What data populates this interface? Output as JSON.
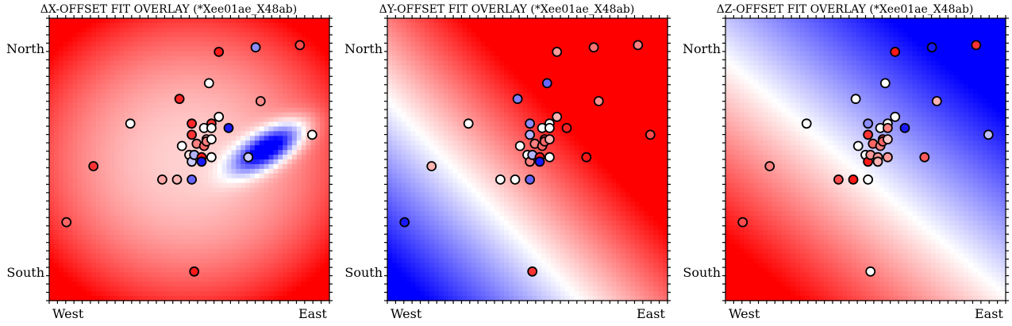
{
  "chart_data": [
    {
      "type": "scatter",
      "title": "ΔX-OFFSET FIT OVERLAY (*Xee01ae_X48ab)",
      "x_tick_labels": [
        "West",
        "East"
      ],
      "y_tick_labels": [
        "North",
        "South"
      ],
      "xlim": [
        -0.07,
        1.07
      ],
      "ylim": [
        -0.13,
        1.13
      ],
      "grid": false,
      "background": {
        "field": [
          [
            -0.9,
            0.1,
            -0.8,
            0.6,
            0.6,
            0.25,
            0.14
          ],
          [
            0.3,
            0.45,
            0.1,
            0.08
          ]
        ],
        "colormap": "bwr"
      },
      "points": [
        {
          "x": 0.0,
          "y": 0.22,
          "value": 0.6
        },
        {
          "x": 0.11,
          "y": 0.47,
          "value": 0.8
        },
        {
          "x": 0.26,
          "y": 0.66,
          "value": 0.0
        },
        {
          "x": 0.39,
          "y": 0.41,
          "value": 0.35
        },
        {
          "x": 0.45,
          "y": 0.41,
          "value": 0.3
        },
        {
          "x": 0.46,
          "y": 0.77,
          "value": 0.85
        },
        {
          "x": 0.47,
          "y": 0.56,
          "value": 0.0
        },
        {
          "x": 0.5,
          "y": 0.52,
          "value": 0.1
        },
        {
          "x": 0.51,
          "y": 0.66,
          "value": 0.85
        },
        {
          "x": 0.51,
          "y": 0.61,
          "value": 0.8
        },
        {
          "x": 0.51,
          "y": 0.49,
          "value": -0.2
        },
        {
          "x": 0.51,
          "y": 0.41,
          "value": -0.6
        },
        {
          "x": 0.52,
          "y": 0.52,
          "value": -0.3
        },
        {
          "x": 0.53,
          "y": 0.57,
          "value": 0.5
        },
        {
          "x": 0.55,
          "y": 0.51,
          "value": 0.9
        },
        {
          "x": 0.55,
          "y": 0.49,
          "value": -0.9
        },
        {
          "x": 0.56,
          "y": 0.56,
          "value": 0.6
        },
        {
          "x": 0.56,
          "y": 0.64,
          "value": 0.0
        },
        {
          "x": 0.57,
          "y": 0.59,
          "value": 0.3
        },
        {
          "x": 0.57,
          "y": 0.58,
          "value": 0.5
        },
        {
          "x": 0.59,
          "y": 0.66,
          "value": 0.8
        },
        {
          "x": 0.59,
          "y": 0.64,
          "value": 0.0
        },
        {
          "x": 0.59,
          "y": 0.59,
          "value": 0.0
        },
        {
          "x": 0.59,
          "y": 0.51,
          "value": 0.0
        },
        {
          "x": 0.58,
          "y": 0.84,
          "value": 0.0
        },
        {
          "x": 0.62,
          "y": 0.69,
          "value": 0.0
        },
        {
          "x": 0.62,
          "y": 0.98,
          "value": 0.9
        },
        {
          "x": 0.66,
          "y": 0.64,
          "value": -0.9
        },
        {
          "x": 0.74,
          "y": 0.51,
          "value": -0.2
        },
        {
          "x": 0.77,
          "y": 1.0,
          "value": -0.45
        },
        {
          "x": 0.79,
          "y": 0.76,
          "value": 0.45
        },
        {
          "x": 0.95,
          "y": 1.01,
          "value": 0.7
        },
        {
          "x": 1.0,
          "y": 0.61,
          "value": 0.0
        },
        {
          "x": 0.52,
          "y": 0.0,
          "value": 0.9
        }
      ]
    },
    {
      "type": "scatter",
      "title": "ΔY-OFFSET FIT OVERLAY (*Xee01ae_X48ab)",
      "x_tick_labels": [
        "West",
        "East"
      ],
      "y_tick_labels": [
        "North",
        "South"
      ],
      "xlim": [
        -0.07,
        1.07
      ],
      "ylim": [
        -0.13,
        1.13
      ],
      "grid": false,
      "background": {
        "field": "diagonal",
        "colormap": "bwr"
      },
      "points": [
        {
          "x": 0.0,
          "y": 0.22,
          "value": -0.9
        },
        {
          "x": 0.11,
          "y": 0.47,
          "value": 0.3
        },
        {
          "x": 0.26,
          "y": 0.66,
          "value": 0.0
        },
        {
          "x": 0.39,
          "y": 0.41,
          "value": 0.0
        },
        {
          "x": 0.45,
          "y": 0.41,
          "value": 0.0
        },
        {
          "x": 0.46,
          "y": 0.77,
          "value": -0.5
        },
        {
          "x": 0.47,
          "y": 0.56,
          "value": 0.0
        },
        {
          "x": 0.5,
          "y": 0.52,
          "value": 0.0
        },
        {
          "x": 0.51,
          "y": 0.66,
          "value": -0.45
        },
        {
          "x": 0.51,
          "y": 0.61,
          "value": -0.3
        },
        {
          "x": 0.51,
          "y": 0.49,
          "value": 0.5
        },
        {
          "x": 0.51,
          "y": 0.41,
          "value": -0.6
        },
        {
          "x": 0.52,
          "y": 0.52,
          "value": -0.3
        },
        {
          "x": 0.53,
          "y": 0.57,
          "value": 0.5
        },
        {
          "x": 0.55,
          "y": 0.51,
          "value": 0.9
        },
        {
          "x": 0.55,
          "y": 0.49,
          "value": -0.9
        },
        {
          "x": 0.56,
          "y": 0.56,
          "value": 0.6
        },
        {
          "x": 0.56,
          "y": 0.64,
          "value": 0.0
        },
        {
          "x": 0.57,
          "y": 0.59,
          "value": 0.7
        },
        {
          "x": 0.57,
          "y": 0.58,
          "value": 0.6
        },
        {
          "x": 0.59,
          "y": 0.66,
          "value": 0.0
        },
        {
          "x": 0.59,
          "y": 0.64,
          "value": 0.0
        },
        {
          "x": 0.59,
          "y": 0.59,
          "value": 0.3
        },
        {
          "x": 0.59,
          "y": 0.51,
          "value": 0.0
        },
        {
          "x": 0.58,
          "y": 0.84,
          "value": -0.6
        },
        {
          "x": 0.62,
          "y": 0.69,
          "value": 0.3
        },
        {
          "x": 0.62,
          "y": 0.98,
          "value": 0.4
        },
        {
          "x": 0.66,
          "y": 0.64,
          "value": 0.85
        },
        {
          "x": 0.74,
          "y": 0.51,
          "value": 0.9
        },
        {
          "x": 0.77,
          "y": 1.0,
          "value": 0.55
        },
        {
          "x": 0.79,
          "y": 0.76,
          "value": 0.45
        },
        {
          "x": 0.95,
          "y": 1.01,
          "value": 0.5
        },
        {
          "x": 1.0,
          "y": 0.61,
          "value": 0.7
        },
        {
          "x": 0.52,
          "y": 0.0,
          "value": 0.8
        }
      ]
    },
    {
      "type": "scatter",
      "title": "ΔZ-OFFSET FIT OVERLAY (*Xee01ae_X48ab)",
      "x_tick_labels": [
        "West",
        "East"
      ],
      "y_tick_labels": [
        "North",
        "South"
      ],
      "xlim": [
        -0.07,
        1.07
      ],
      "ylim": [
        -0.13,
        1.13
      ],
      "grid": false,
      "background": {
        "field": "antidiagonal",
        "colormap": "bwr"
      },
      "points": [
        {
          "x": 0.0,
          "y": 0.22,
          "value": 0.7
        },
        {
          "x": 0.11,
          "y": 0.47,
          "value": 0.5
        },
        {
          "x": 0.26,
          "y": 0.66,
          "value": 0.0
        },
        {
          "x": 0.39,
          "y": 0.41,
          "value": 0.7
        },
        {
          "x": 0.45,
          "y": 0.41,
          "value": 0.9
        },
        {
          "x": 0.46,
          "y": 0.77,
          "value": 0.0
        },
        {
          "x": 0.47,
          "y": 0.56,
          "value": 0.0
        },
        {
          "x": 0.5,
          "y": 0.52,
          "value": 0.0
        },
        {
          "x": 0.51,
          "y": 0.66,
          "value": -0.45
        },
        {
          "x": 0.51,
          "y": 0.61,
          "value": 0.8
        },
        {
          "x": 0.51,
          "y": 0.49,
          "value": 0.9
        },
        {
          "x": 0.51,
          "y": 0.41,
          "value": 0.0
        },
        {
          "x": 0.52,
          "y": 0.52,
          "value": 0.4
        },
        {
          "x": 0.53,
          "y": 0.57,
          "value": 0.6
        },
        {
          "x": 0.55,
          "y": 0.51,
          "value": 0.4
        },
        {
          "x": 0.55,
          "y": 0.49,
          "value": 0.3
        },
        {
          "x": 0.56,
          "y": 0.56,
          "value": 0.5
        },
        {
          "x": 0.56,
          "y": 0.64,
          "value": 0.0
        },
        {
          "x": 0.57,
          "y": 0.59,
          "value": 0.7
        },
        {
          "x": 0.57,
          "y": 0.58,
          "value": 0.6
        },
        {
          "x": 0.59,
          "y": 0.66,
          "value": 0.0
        },
        {
          "x": 0.59,
          "y": 0.64,
          "value": 0.5
        },
        {
          "x": 0.59,
          "y": 0.59,
          "value": 0.2
        },
        {
          "x": 0.59,
          "y": 0.51,
          "value": 0.4
        },
        {
          "x": 0.58,
          "y": 0.84,
          "value": 0.0
        },
        {
          "x": 0.62,
          "y": 0.69,
          "value": 0.0
        },
        {
          "x": 0.62,
          "y": 0.98,
          "value": 0.9
        },
        {
          "x": 0.66,
          "y": 0.64,
          "value": -0.9
        },
        {
          "x": 0.74,
          "y": 0.51,
          "value": 0.65
        },
        {
          "x": 0.77,
          "y": 1.0,
          "value": -0.9
        },
        {
          "x": 0.79,
          "y": 0.76,
          "value": 0.3
        },
        {
          "x": 0.95,
          "y": 1.01,
          "value": 0.8
        },
        {
          "x": 1.0,
          "y": 0.61,
          "value": -0.25
        },
        {
          "x": 0.52,
          "y": 0.0,
          "value": 0.0
        }
      ]
    }
  ]
}
